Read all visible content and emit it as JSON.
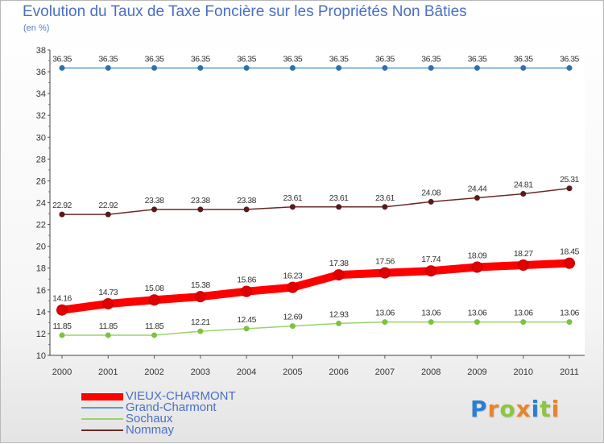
{
  "title": "Evolution du Taux de Taxe Foncière sur les Propriétés Non Bâties",
  "unit_label": "(en %)",
  "logo": {
    "letters": [
      "P",
      "r",
      "o",
      "x",
      "i",
      "t",
      "i"
    ],
    "colors": [
      "#2a7fd0",
      "#e8842a",
      "#8cc63f",
      "#e8842a",
      "#2a7fd0",
      "#8cc63f",
      "#e8842a"
    ]
  },
  "chart_data": {
    "type": "line",
    "title": "Evolution du Taux de Taxe Foncière sur les Propriétés Non Bâties",
    "ylabel": "(en %)",
    "xlabel": "",
    "ylim": [
      10,
      38
    ],
    "yticks": [
      "10",
      "12",
      "14",
      "16",
      "18",
      "20",
      "22",
      "24",
      "26",
      "28",
      "30",
      "32",
      "34",
      "36",
      "38"
    ],
    "categories": [
      "2000",
      "2001",
      "2002",
      "2003",
      "2004",
      "2005",
      "2006",
      "2007",
      "2008",
      "2009",
      "2010",
      "2011"
    ],
    "series": [
      {
        "name": "Grand-Charmont",
        "color": "#5b9bd5",
        "dot": "#2f6fb0",
        "values": [
          36.35,
          36.35,
          36.35,
          36.35,
          36.35,
          36.35,
          36.35,
          36.35,
          36.35,
          36.35,
          36.35,
          36.35
        ],
        "labels": [
          "36.35",
          "36.35",
          "36.35",
          "36.35",
          "36.35",
          "36.35",
          "36.35",
          "36.35",
          "36.35",
          "36.35",
          "36.35",
          "36.35"
        ]
      },
      {
        "name": "Nommay",
        "color": "#6b2a2a",
        "dot": "#5a1a1a",
        "values": [
          22.92,
          22.92,
          23.38,
          23.38,
          23.38,
          23.61,
          23.61,
          23.61,
          24.08,
          24.44,
          24.81,
          25.31
        ],
        "labels": [
          "22.92",
          "22.92",
          "23.38",
          "23.38",
          "23.38",
          "23.61",
          "23.61",
          "23.61",
          "24.08",
          "24.44",
          "24.81",
          "25.31"
        ]
      },
      {
        "name": "Sochaux",
        "color": "#99d46a",
        "dot": "#7cc242",
        "values": [
          11.85,
          11.85,
          11.85,
          12.21,
          12.45,
          12.69,
          12.93,
          13.06,
          13.06,
          13.06,
          13.06,
          13.06
        ],
        "labels": [
          "11.85",
          "11.85",
          "11.85",
          "12.21",
          "12.45",
          "12.69",
          "12.93",
          "13.06",
          "13.06",
          "13.06",
          "13.06",
          "13.06"
        ]
      },
      {
        "name": "VIEUX-CHARMONT",
        "color": "#ff0000",
        "dot": "#e00000",
        "values": [
          14.16,
          14.73,
          15.08,
          15.38,
          15.86,
          16.23,
          17.38,
          17.56,
          17.74,
          18.09,
          18.27,
          18.45
        ],
        "labels": [
          "14.16",
          "14.73",
          "15.08",
          "15.38",
          "15.86",
          "16.23",
          "17.38",
          "17.56",
          "17.74",
          "18.09",
          "18.27",
          "18.45"
        ]
      }
    ],
    "legend": [
      {
        "name": "VIEUX-CHARMONT",
        "color": "#ff0000"
      },
      {
        "name": "Grand-Charmont",
        "color": "#5b9bd5"
      },
      {
        "name": "Sochaux",
        "color": "#99d46a"
      },
      {
        "name": "Nommay",
        "color": "#6b2a2a"
      }
    ]
  }
}
